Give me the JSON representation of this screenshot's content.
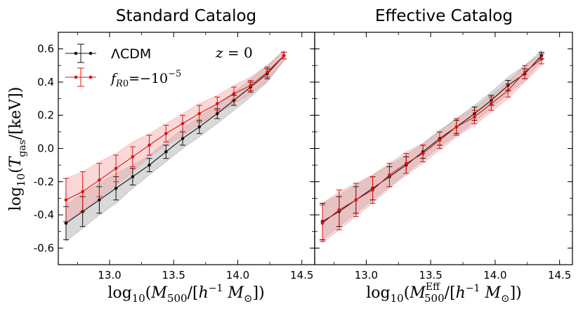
{
  "colors": {
    "lcdm": "#111111",
    "fr0": "#e01010",
    "band_lcdm": "#b9b9b9",
    "band_fr0": "#f4a8a8"
  },
  "y_axis_label": "log10(Tgas/[keV])",
  "legend": {
    "lcdm_label": "ΛCDM",
    "fr0_label": "fR0 = −10^−5"
  },
  "annotation": "z = 0",
  "chart_data": [
    {
      "type": "line",
      "title": "Standard Catalog",
      "xlabel": "log10(M500/[h^-1 M_sun])",
      "ylabel": "log10(Tgas/[keV])",
      "xlim": [
        12.6,
        14.6
      ],
      "ylim": [
        -0.7,
        0.7
      ],
      "xticks": [
        "13.0",
        "13.5",
        "14.0",
        "14.5"
      ],
      "yticks": [
        "-0.6",
        "-0.4",
        "-0.2",
        "0.0",
        "0.2",
        "0.4",
        "0.6"
      ],
      "legend_position": "top-left",
      "series": [
        {
          "name": "ΛCDM",
          "x": [
            12.66,
            12.79,
            12.92,
            13.05,
            13.18,
            13.31,
            13.44,
            13.57,
            13.7,
            13.84,
            13.97,
            14.1,
            14.23,
            14.36
          ],
          "y": [
            -0.45,
            -0.38,
            -0.31,
            -0.24,
            -0.17,
            -0.1,
            -0.02,
            0.06,
            0.13,
            0.21,
            0.29,
            0.37,
            0.45,
            0.56
          ],
          "err": [
            0.1,
            0.09,
            0.08,
            0.07,
            0.05,
            0.04,
            0.04,
            0.04,
            0.04,
            0.03,
            0.03,
            0.03,
            0.03,
            0.02
          ],
          "band_low": [
            -0.56,
            -0.48,
            -0.4,
            -0.33,
            -0.24,
            -0.16,
            -0.08,
            0.0,
            0.07,
            0.15,
            0.23,
            0.31,
            0.4,
            0.53
          ],
          "band_high": [
            -0.34,
            -0.27,
            -0.21,
            -0.15,
            -0.1,
            -0.04,
            0.04,
            0.12,
            0.19,
            0.27,
            0.34,
            0.42,
            0.5,
            0.59
          ]
        },
        {
          "name": "fR0 = −10^−5",
          "x": [
            12.66,
            12.79,
            12.92,
            13.05,
            13.18,
            13.31,
            13.44,
            13.57,
            13.7,
            13.84,
            13.97,
            14.1,
            14.23,
            14.36
          ],
          "y": [
            -0.31,
            -0.26,
            -0.19,
            -0.12,
            -0.05,
            0.02,
            0.09,
            0.15,
            0.21,
            0.27,
            0.33,
            0.38,
            0.46,
            0.56
          ],
          "err": [
            0.13,
            0.12,
            0.1,
            0.08,
            0.06,
            0.06,
            0.05,
            0.05,
            0.05,
            0.04,
            0.04,
            0.03,
            0.03,
            0.02
          ],
          "band_low": [
            -0.44,
            -0.38,
            -0.3,
            -0.22,
            -0.14,
            -0.05,
            0.02,
            0.08,
            0.15,
            0.21,
            0.27,
            0.33,
            0.41,
            0.53
          ],
          "band_high": [
            -0.18,
            -0.14,
            -0.08,
            -0.03,
            0.04,
            0.09,
            0.15,
            0.21,
            0.27,
            0.32,
            0.38,
            0.43,
            0.5,
            0.59
          ]
        }
      ]
    },
    {
      "type": "line",
      "title": "Effective Catalog",
      "xlabel": "log10(M500^Eff/[h^-1 M_sun])",
      "ylabel": "",
      "xlim": [
        12.6,
        14.6
      ],
      "ylim": [
        -0.7,
        0.7
      ],
      "xticks": [
        "13.0",
        "13.5",
        "14.0",
        "14.5"
      ],
      "yticks": [],
      "legend_position": "none",
      "series": [
        {
          "name": "ΛCDM",
          "x": [
            12.66,
            12.79,
            12.92,
            13.05,
            13.18,
            13.31,
            13.44,
            13.57,
            13.7,
            13.84,
            13.97,
            14.1,
            14.23,
            14.36
          ],
          "y": [
            -0.44,
            -0.38,
            -0.31,
            -0.24,
            -0.17,
            -0.1,
            -0.02,
            0.06,
            0.13,
            0.21,
            0.29,
            0.38,
            0.45,
            0.56
          ],
          "err": [
            0.11,
            0.09,
            0.08,
            0.07,
            0.06,
            0.05,
            0.04,
            0.04,
            0.04,
            0.04,
            0.03,
            0.03,
            0.03,
            0.02
          ],
          "band_low": [
            -0.55,
            -0.47,
            -0.39,
            -0.31,
            -0.23,
            -0.15,
            -0.07,
            0.01,
            0.08,
            0.16,
            0.24,
            0.33,
            0.41,
            0.53
          ],
          "band_high": [
            -0.33,
            -0.28,
            -0.22,
            -0.16,
            -0.1,
            -0.04,
            0.03,
            0.11,
            0.18,
            0.26,
            0.34,
            0.43,
            0.5,
            0.59
          ]
        },
        {
          "name": "fR0 = −10^−5",
          "x": [
            12.66,
            12.79,
            12.92,
            13.05,
            13.18,
            13.31,
            13.44,
            13.57,
            13.7,
            13.84,
            13.97,
            14.1,
            14.23,
            14.36
          ],
          "y": [
            -0.45,
            -0.37,
            -0.31,
            -0.25,
            -0.16,
            -0.09,
            -0.03,
            0.05,
            0.13,
            0.19,
            0.27,
            0.35,
            0.46,
            0.54
          ],
          "err": [
            0.11,
            0.12,
            0.1,
            0.08,
            0.07,
            0.06,
            0.05,
            0.05,
            0.05,
            0.04,
            0.04,
            0.04,
            0.04,
            0.03
          ],
          "band_low": [
            -0.57,
            -0.49,
            -0.41,
            -0.33,
            -0.24,
            -0.16,
            -0.09,
            -0.01,
            0.07,
            0.14,
            0.22,
            0.3,
            0.4,
            0.5
          ],
          "band_high": [
            -0.33,
            -0.26,
            -0.21,
            -0.16,
            -0.09,
            -0.02,
            0.03,
            0.1,
            0.18,
            0.24,
            0.32,
            0.4,
            0.5,
            0.57
          ]
        }
      ]
    }
  ]
}
